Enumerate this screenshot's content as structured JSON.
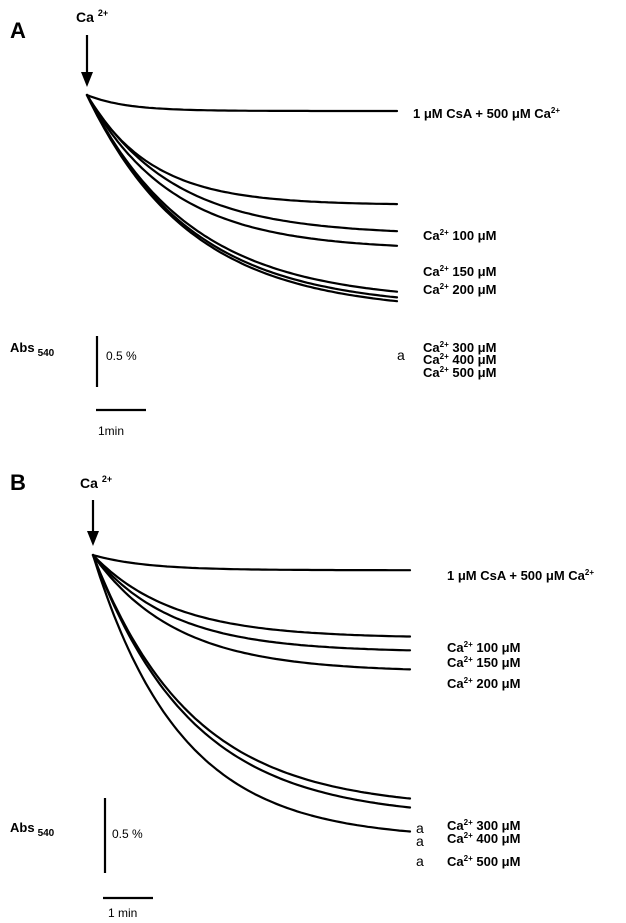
{
  "chart_data": [
    {
      "type": "line",
      "panel": "A",
      "addition_label": "Ca",
      "addition_sup": "2+",
      "abs_label": "Abs",
      "abs_sub": "540",
      "scale_label": "0.5 %",
      "time_label": "1min",
      "series": [
        {
          "name": "1 μM CsA + 500 μM Ca",
          "sup": "2+",
          "name_after": "",
          "plateau": 0.16
        },
        {
          "name": "Ca",
          "sup": "2+",
          "name_after": " 100 μM",
          "plateau": 1.1
        },
        {
          "name": "Ca",
          "sup": "2+",
          "name_after": " 150 μM",
          "plateau": 1.4
        },
        {
          "name": "Ca",
          "sup": "2+",
          "name_after": " 200 μM",
          "plateau": 1.55
        },
        {
          "name": "Ca",
          "sup": "2+",
          "name_after": " 300 μM",
          "plateau": 2.07
        },
        {
          "name": "Ca",
          "sup": "2+",
          "name_after": " 400 μM",
          "plateau": 2.13
        },
        {
          "name": "Ca",
          "sup": "2+",
          "name_after": " 500 μM",
          "plateau": 2.17
        }
      ],
      "annotations": [
        "a"
      ]
    },
    {
      "type": "line",
      "panel": "B",
      "addition_label": "Ca",
      "addition_sup": "2+",
      "abs_label": "Abs",
      "abs_sub": "540",
      "scale_label": "0.5 %",
      "time_label": "1 min",
      "series": [
        {
          "name": "1 μM CsA + 500 μM Ca",
          "sup": "2+",
          "name_after": "",
          "plateau": 0.13
        },
        {
          "name": "Ca",
          "sup": "2+",
          "name_after": " 100 μM",
          "plateau": 0.71
        },
        {
          "name": "Ca",
          "sup": "2+",
          "name_after": " 150 μM",
          "plateau": 0.83
        },
        {
          "name": "Ca",
          "sup": "2+",
          "name_after": " 200 μM",
          "plateau": 1.0
        },
        {
          "name": "Ca",
          "sup": "2+",
          "name_after": " 300 μM",
          "plateau": 2.17
        },
        {
          "name": "Ca",
          "sup": "2+",
          "name_after": " 400 μM",
          "plateau": 2.25
        },
        {
          "name": "Ca",
          "sup": "2+",
          "name_after": " 500 μM",
          "plateau": 2.43
        }
      ],
      "annotations": [
        "a",
        "a",
        "a"
      ]
    }
  ]
}
